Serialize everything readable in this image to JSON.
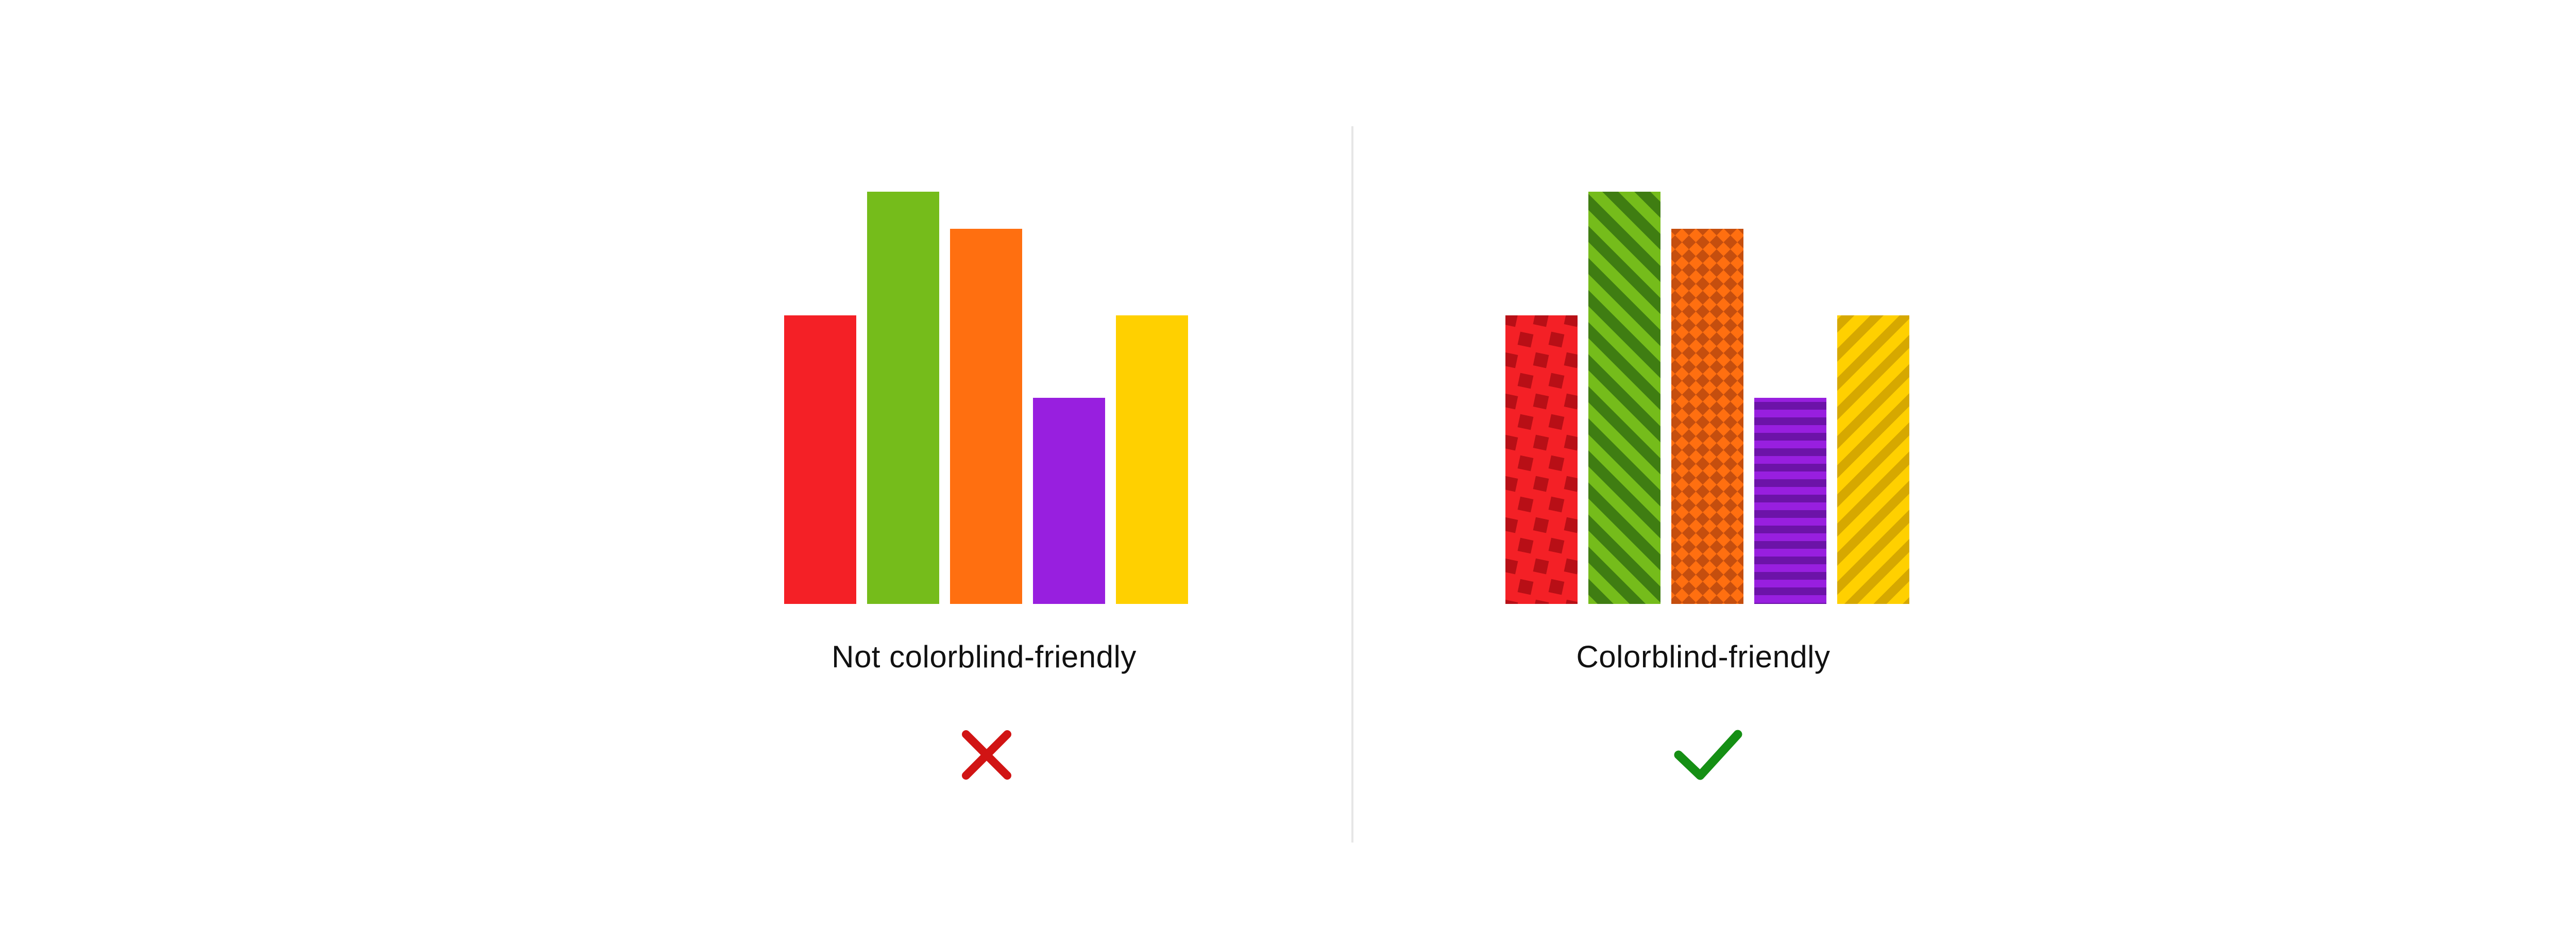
{
  "colors": {
    "red": "#f42026",
    "green": "#75bc1b",
    "orange": "#ff6f10",
    "purple": "#981fdf",
    "yellow": "#ffd000",
    "cross": "#d11414",
    "check": "#158f14",
    "divider": "#e6e6e6"
  },
  "patterns": {
    "red": "staggered-squares",
    "green": "diagonal-stripes",
    "orange": "diamond-checker",
    "purple": "horizontal-stripes",
    "yellow": "diagonal-stripes"
  },
  "left_panel": {
    "caption": "Not colorblind-friendly",
    "status_icon": "cross-icon"
  },
  "right_panel": {
    "caption": "Colorblind-friendly",
    "status_icon": "check-icon"
  },
  "chart_data": [
    {
      "type": "bar",
      "title": "",
      "xlabel": "",
      "ylabel": "",
      "categories": [
        "",
        "",
        "",
        "",
        ""
      ],
      "values": [
        70,
        100,
        91,
        50,
        70
      ],
      "ylim": [
        0,
        100
      ],
      "grid": false,
      "bar_colors": [
        "red",
        "green",
        "orange",
        "purple",
        "yellow"
      ],
      "fill": "solid"
    },
    {
      "type": "bar",
      "title": "",
      "xlabel": "",
      "ylabel": "",
      "categories": [
        "",
        "",
        "",
        "",
        ""
      ],
      "values": [
        70,
        100,
        91,
        50,
        70
      ],
      "ylim": [
        0,
        100
      ],
      "grid": false,
      "bar_colors": [
        "red",
        "green",
        "orange",
        "purple",
        "yellow"
      ],
      "fill": "patterned"
    }
  ]
}
